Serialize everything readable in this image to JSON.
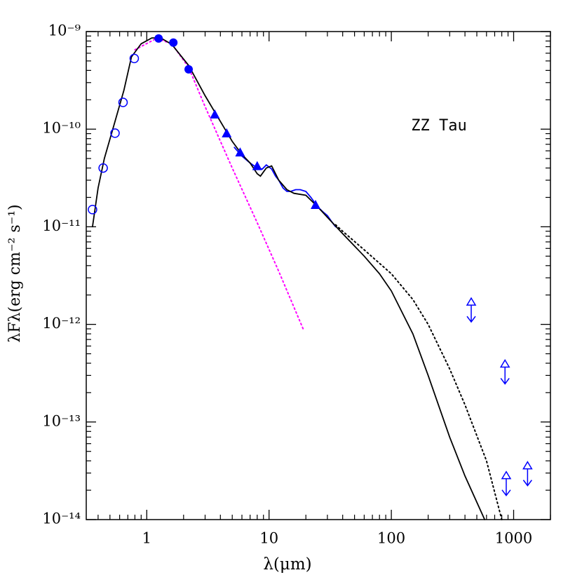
{
  "chart_data": {
    "type": "scatter",
    "xlabel": "λ(μm)",
    "ylabel": "λFλ(erg cm⁻² s⁻¹)",
    "annotation": "ZZ Tau",
    "log_x": true,
    "log_y": true,
    "xlim": [
      0.32,
      2000
    ],
    "ylim": [
      1e-14,
      1e-09
    ],
    "xticks": [
      1,
      10,
      100,
      1000
    ],
    "xminor_ticks": [
      0.4,
      0.5,
      0.6,
      0.7,
      0.8,
      0.9,
      2,
      3,
      4,
      5,
      6,
      7,
      8,
      9,
      20,
      30,
      40,
      50,
      60,
      70,
      80,
      90,
      200,
      300,
      400,
      500,
      600,
      700,
      800,
      900,
      2000
    ],
    "yticks": [
      {
        "value": 1e-14,
        "label": "10⁻¹⁴"
      },
      {
        "value": 1e-13,
        "label": "10⁻¹³"
      },
      {
        "value": 1e-12,
        "label": "10⁻¹²"
      },
      {
        "value": 1e-11,
        "label": "10⁻¹¹"
      },
      {
        "value": 1e-10,
        "label": "10⁻¹⁰"
      },
      {
        "value": 1e-09,
        "label": "10⁻⁹"
      }
    ],
    "yminor_ticks": [
      2e-14,
      3e-14,
      4e-14,
      5e-14,
      6e-14,
      7e-14,
      8e-14,
      9e-14,
      2e-13,
      3e-13,
      4e-13,
      5e-13,
      6e-13,
      7e-13,
      8e-13,
      9e-13,
      2e-12,
      3e-12,
      4e-12,
      5e-12,
      6e-12,
      7e-12,
      8e-12,
      9e-12,
      2e-11,
      3e-11,
      4e-11,
      5e-11,
      6e-11,
      7e-11,
      8e-11,
      9e-11,
      2e-10,
      3e-10,
      4e-10,
      5e-10,
      6e-10,
      7e-10,
      8e-10,
      9e-10
    ],
    "series": [
      {
        "style": "line",
        "color": "#ff00ff",
        "dash": true,
        "x": [
          0.8,
          1.2,
          1.6,
          2.2,
          3,
          5,
          8,
          12,
          19
        ],
        "y": [
          6.5e-10,
          8.5e-10,
          7.5e-10,
          4.3e-10,
          1.7e-10,
          4e-11,
          1.1e-11,
          3.5e-12,
          9e-13
        ]
      },
      {
        "style": "line",
        "color": "#000000",
        "dash": true,
        "x": [
          35,
          40,
          60,
          100,
          150,
          200,
          300,
          400,
          600,
          800
        ],
        "y": [
          1.05e-11,
          9e-12,
          5.8e-12,
          3.3e-12,
          1.8e-12,
          1e-12,
          3.5e-13,
          1.5e-13,
          4e-14,
          1e-14
        ]
      },
      {
        "style": "line",
        "color": "#0000ff",
        "dash": false,
        "x": [
          5.2,
          6,
          7,
          8,
          8.8,
          9.5,
          10.5,
          11.3,
          12,
          13,
          14,
          15,
          16.5,
          18,
          20,
          22,
          25,
          28,
          30,
          33,
          35
        ],
        "y": [
          6.5e-11,
          5.3e-11,
          4.5e-11,
          4e-11,
          3.9e-11,
          4.3e-11,
          3.9e-11,
          3.3e-11,
          3e-11,
          2.5e-11,
          2.3e-11,
          2.3e-11,
          2.4e-11,
          2.4e-11,
          2.3e-11,
          2e-11,
          1.6e-11,
          1.4e-11,
          1.3e-11,
          1.1e-11,
          1e-11
        ]
      },
      {
        "style": "line",
        "color": "#000000",
        "dash": false,
        "x": [
          0.36,
          0.4,
          0.45,
          0.55,
          0.65,
          0.75,
          0.9,
          1.1,
          1.3,
          1.6,
          2.2,
          3,
          4,
          5,
          6,
          7,
          8,
          8.5,
          9.5,
          10.5,
          12,
          14,
          16,
          20,
          25,
          30,
          40,
          60,
          80,
          100,
          150,
          200,
          300,
          400,
          580
        ],
        "y": [
          1e-11,
          2.5e-11,
          5e-11,
          1.2e-10,
          2.5e-10,
          5.5e-10,
          7.5e-10,
          8.6e-10,
          8.6e-10,
          7.4e-10,
          4.5e-10,
          2.2e-10,
          1.2e-10,
          7.5e-11,
          5.5e-11,
          4.5e-11,
          3.5e-11,
          3.3e-11,
          4e-11,
          4.2e-11,
          3e-11,
          2.4e-11,
          2.2e-11,
          2.1e-11,
          1.6e-11,
          1.25e-11,
          8.5e-12,
          5e-12,
          3.3e-12,
          2.2e-12,
          8e-13,
          3e-13,
          7e-14,
          2.8e-14,
          1e-14
        ]
      },
      {
        "style": "open-circle",
        "color": "#0000ff",
        "x": [
          0.36,
          0.44,
          0.55,
          0.64,
          0.79
        ],
        "y": [
          1.5e-11,
          4e-11,
          9.1e-11,
          1.88e-10,
          5.3e-10
        ]
      },
      {
        "style": "circle",
        "color": "#0000ff",
        "x": [
          1.25,
          1.65,
          2.2
        ],
        "y": [
          8.5e-10,
          7.7e-10,
          4.1e-10
        ]
      },
      {
        "style": "triangle",
        "color": "#0000ff",
        "x": [
          3.6,
          4.5,
          5.8,
          8,
          24
        ],
        "y": [
          1.42e-10,
          9.1e-11,
          5.8e-11,
          4.2e-11,
          1.68e-11
        ]
      },
      {
        "style": "limit",
        "color": "#0000ff",
        "x": [
          450,
          850,
          870,
          1300
        ],
        "y": [
          1.38e-12,
          3.2e-13,
          2.3e-14,
          2.9e-14
        ]
      }
    ]
  }
}
